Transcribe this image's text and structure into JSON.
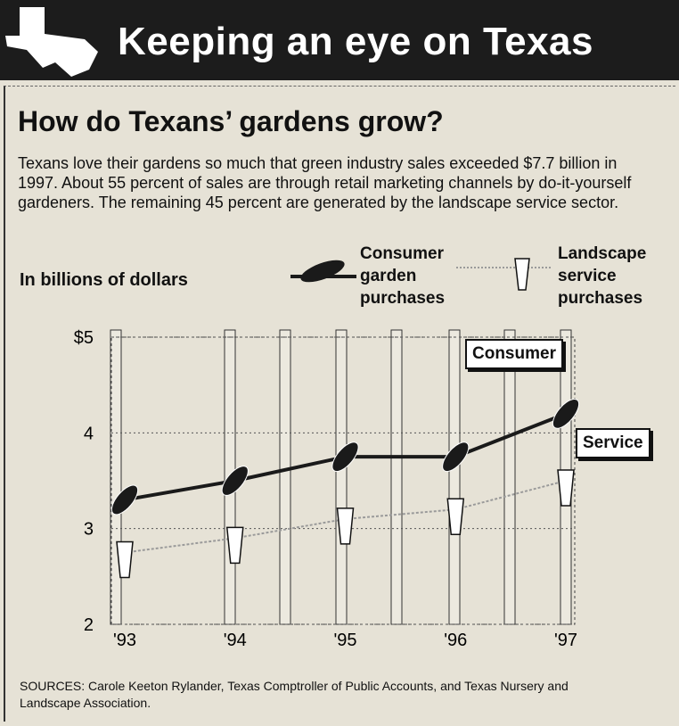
{
  "header": "Keeping an eye on Texas",
  "chart_data": {
    "type": "line",
    "title": "How do Texans’ gardens grow?",
    "subtitle": "Texans love their gardens so much that green industry sales exceeded $7.7 billion in 1997. About 55 percent of sales are through retail marketing channels by do-it-yourself gardeners. The remaining 45 percent are generated by the landscape service sector.",
    "y_label": "In billions of dollars",
    "categories": [
      "'93",
      "'94",
      "'95",
      "'96",
      "'97"
    ],
    "series": [
      {
        "name": "Consumer garden purchases",
        "color": "#1a1a1a",
        "values": [
          3.3,
          3.5,
          3.75,
          3.75,
          4.2
        ]
      },
      {
        "name": "Landscape service purchases",
        "color": "#9a9a9a",
        "values": [
          2.75,
          2.9,
          3.1,
          3.2,
          3.5
        ]
      }
    ],
    "ylim": [
      2,
      5
    ],
    "yticks": [
      2,
      3,
      4,
      {
        "value": 5,
        "label": "$5"
      }
    ],
    "grid": true,
    "annotations": [
      "Consumer",
      "Service"
    ],
    "source": "SOURCES: Carole Keeton Rylander, Texas Comptroller of Public Accounts, and Texas Nursery and Landscape Association."
  }
}
